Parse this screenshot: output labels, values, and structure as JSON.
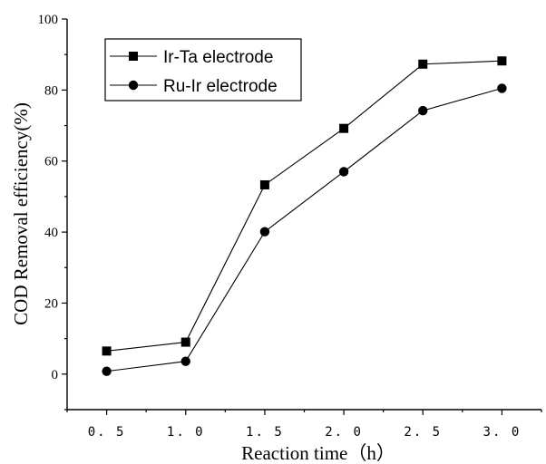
{
  "chart_data": {
    "type": "line",
    "xlabel": "Reaction time（h）",
    "ylabel": "COD Removal efficiency(%)",
    "xlim": [
      0.25,
      3.25
    ],
    "ylim": [
      -10,
      100
    ],
    "x_ticks": [
      "0.5",
      "1.0",
      "1.5",
      "2.0",
      "2.5",
      "3.0"
    ],
    "y_ticks": [
      "0",
      "20",
      "40",
      "60",
      "80",
      "100"
    ],
    "x": [
      0.5,
      1.0,
      1.5,
      2.0,
      2.5,
      3.0
    ],
    "series": [
      {
        "name": "Ir-Ta electrode",
        "marker": "square",
        "values": [
          6.5,
          9.0,
          53.3,
          69.2,
          87.3,
          88.2
        ]
      },
      {
        "name": "Ru-Ir electrode",
        "marker": "circle",
        "values": [
          0.8,
          3.6,
          40.1,
          57.0,
          74.2,
          80.5
        ]
      }
    ],
    "legend_position": "top-left",
    "grid": false,
    "colors": {
      "line": "#000000",
      "marker": "#000000",
      "background": "#ffffff"
    }
  }
}
